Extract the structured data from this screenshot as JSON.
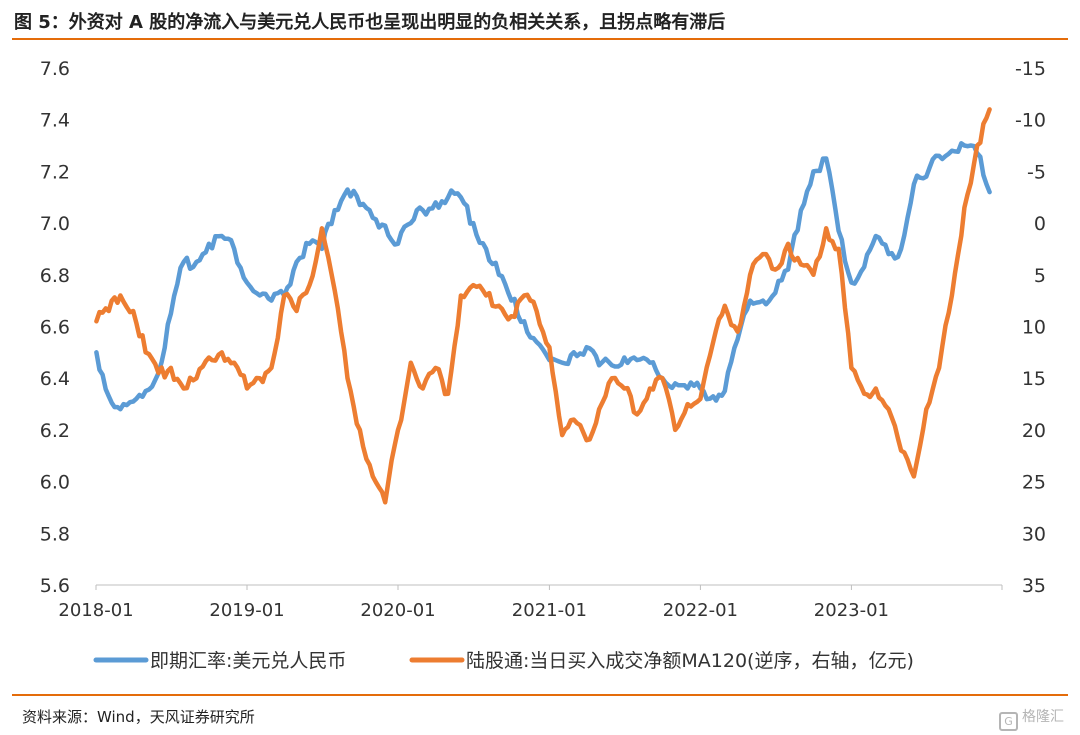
{
  "title": "图 5：外资对 A 股的净流入与美元兑人民币也呈现出明显的负相关关系，且拐点略有滞后",
  "source": "资料来源：Wind，天风证券研究所",
  "watermark": "格隆汇",
  "chart_data": {
    "type": "line",
    "x_tick_labels": [
      "2018-01",
      "2019-01",
      "2020-01",
      "2021-01",
      "2022-01",
      "2023-01"
    ],
    "x_range": [
      "2018-01",
      "2023-12"
    ],
    "y_left": {
      "range": [
        5.6,
        7.6
      ],
      "ticks": [
        "7.6",
        "7.4",
        "7.2",
        "7.0",
        "6.8",
        "6.6",
        "6.4",
        "6.2",
        "6.0",
        "5.8",
        "5.6"
      ]
    },
    "y_right": {
      "range": [
        -15,
        35
      ],
      "inverted": true,
      "ticks": [
        "-15",
        "-10",
        "-5",
        "0",
        "5",
        "10",
        "15",
        "20",
        "25",
        "30",
        "35"
      ]
    },
    "grid": false,
    "legend_position": "bottom",
    "series": [
      {
        "name": "即期汇率:美元兑人民币",
        "axis": "left",
        "color": "#5b9bd5",
        "x": [
          "2018-01-02",
          "2018-02-01",
          "2018-03-01",
          "2018-04-01",
          "2018-05-01",
          "2018-06-01",
          "2018-07-01",
          "2018-08-01",
          "2018-09-01",
          "2018-10-01",
          "2018-11-01",
          "2018-12-01",
          "2019-01-01",
          "2019-02-01",
          "2019-03-01",
          "2019-04-01",
          "2019-05-01",
          "2019-06-01",
          "2019-07-01",
          "2019-08-01",
          "2019-09-01",
          "2019-10-01",
          "2019-11-01",
          "2019-12-01",
          "2020-01-01",
          "2020-02-01",
          "2020-03-01",
          "2020-04-01",
          "2020-05-01",
          "2020-06-01",
          "2020-07-01",
          "2020-08-01",
          "2020-09-01",
          "2020-10-01",
          "2020-11-01",
          "2020-12-01",
          "2021-01-01",
          "2021-02-01",
          "2021-03-01",
          "2021-04-01",
          "2021-05-01",
          "2021-06-01",
          "2021-07-01",
          "2021-08-01",
          "2021-09-01",
          "2021-10-01",
          "2021-11-01",
          "2021-12-01",
          "2022-01-01",
          "2022-02-01",
          "2022-03-01",
          "2022-04-01",
          "2022-05-01",
          "2022-06-01",
          "2022-07-01",
          "2022-08-01",
          "2022-09-01",
          "2022-10-01",
          "2022-11-01",
          "2022-12-01",
          "2023-01-01",
          "2023-02-01",
          "2023-03-01",
          "2023-04-01",
          "2023-05-01",
          "2023-06-01",
          "2023-07-01",
          "2023-08-01",
          "2023-09-01",
          "2023-10-01",
          "2023-11-01",
          "2023-12-01"
        ],
        "values": [
          6.5,
          6.33,
          6.28,
          6.31,
          6.35,
          6.42,
          6.65,
          6.85,
          6.85,
          6.92,
          6.95,
          6.9,
          6.77,
          6.72,
          6.7,
          6.72,
          6.85,
          6.92,
          6.9,
          7.05,
          7.13,
          7.07,
          7.02,
          6.99,
          6.92,
          7.0,
          7.05,
          7.08,
          7.1,
          7.1,
          7.0,
          6.9,
          6.8,
          6.7,
          6.62,
          6.54,
          6.47,
          6.46,
          6.5,
          6.52,
          6.45,
          6.45,
          6.48,
          6.47,
          6.46,
          6.4,
          6.38,
          6.36,
          6.36,
          6.33,
          6.35,
          6.55,
          6.7,
          6.7,
          6.73,
          6.82,
          7.05,
          7.2,
          7.25,
          6.97,
          6.77,
          6.83,
          6.95,
          6.88,
          6.9,
          7.15,
          7.18,
          7.26,
          7.28,
          7.3,
          7.27,
          7.12
        ]
      },
      {
        "name": "陆股通:当日买入成交净额MA120(逆序，右轴，亿元)",
        "axis": "right",
        "color": "#ed7d31",
        "x": [
          "2018-01-02",
          "2018-02-01",
          "2018-03-01",
          "2018-04-01",
          "2018-05-01",
          "2018-06-01",
          "2018-07-01",
          "2018-08-01",
          "2018-09-01",
          "2018-10-01",
          "2018-11-01",
          "2018-12-01",
          "2019-01-01",
          "2019-02-01",
          "2019-03-01",
          "2019-04-01",
          "2019-05-01",
          "2019-06-01",
          "2019-07-01",
          "2019-08-01",
          "2019-09-01",
          "2019-10-01",
          "2019-11-01",
          "2019-12-01",
          "2020-01-01",
          "2020-02-01",
          "2020-03-01",
          "2020-04-01",
          "2020-05-01",
          "2020-06-01",
          "2020-07-01",
          "2020-08-01",
          "2020-09-01",
          "2020-10-01",
          "2020-11-01",
          "2020-12-01",
          "2021-01-01",
          "2021-02-01",
          "2021-03-01",
          "2021-04-01",
          "2021-05-01",
          "2021-06-01",
          "2021-07-01",
          "2021-08-01",
          "2021-09-01",
          "2021-10-01",
          "2021-11-01",
          "2021-12-01",
          "2022-01-01",
          "2022-02-01",
          "2022-03-01",
          "2022-04-01",
          "2022-05-01",
          "2022-06-01",
          "2022-07-01",
          "2022-08-01",
          "2022-09-01",
          "2022-10-01",
          "2022-11-01",
          "2022-12-01",
          "2023-01-01",
          "2023-02-01",
          "2023-03-01",
          "2023-04-01",
          "2023-05-01",
          "2023-06-01",
          "2023-07-01",
          "2023-08-01",
          "2023-09-01",
          "2023-10-01",
          "2023-11-01",
          "2023-12-01"
        ],
        "values": [
          9.5,
          8.5,
          7.0,
          8.5,
          12.5,
          14.5,
          14.0,
          16.0,
          15.0,
          13.0,
          12.5,
          13.5,
          16.0,
          15.0,
          14.0,
          7.0,
          8.5,
          6.0,
          0.5,
          6.5,
          15.0,
          20.0,
          24.5,
          27.0,
          20.0,
          13.5,
          16.0,
          14.0,
          16.5,
          7.0,
          6.0,
          7.0,
          8.0,
          9.0,
          7.0,
          8.5,
          12.0,
          20.5,
          19.0,
          21.0,
          18.0,
          15.0,
          16.0,
          18.5,
          16.0,
          15.0,
          20.0,
          17.5,
          17.0,
          11.5,
          8.0,
          10.5,
          5.0,
          3.0,
          4.5,
          2.0,
          4.0,
          5.0,
          0.5,
          2.5,
          14.0,
          16.5,
          16.0,
          18.0,
          22.0,
          24.5,
          18.0,
          14.0,
          7.0,
          -1.5,
          -7.5,
          -11.0
        ]
      }
    ]
  }
}
